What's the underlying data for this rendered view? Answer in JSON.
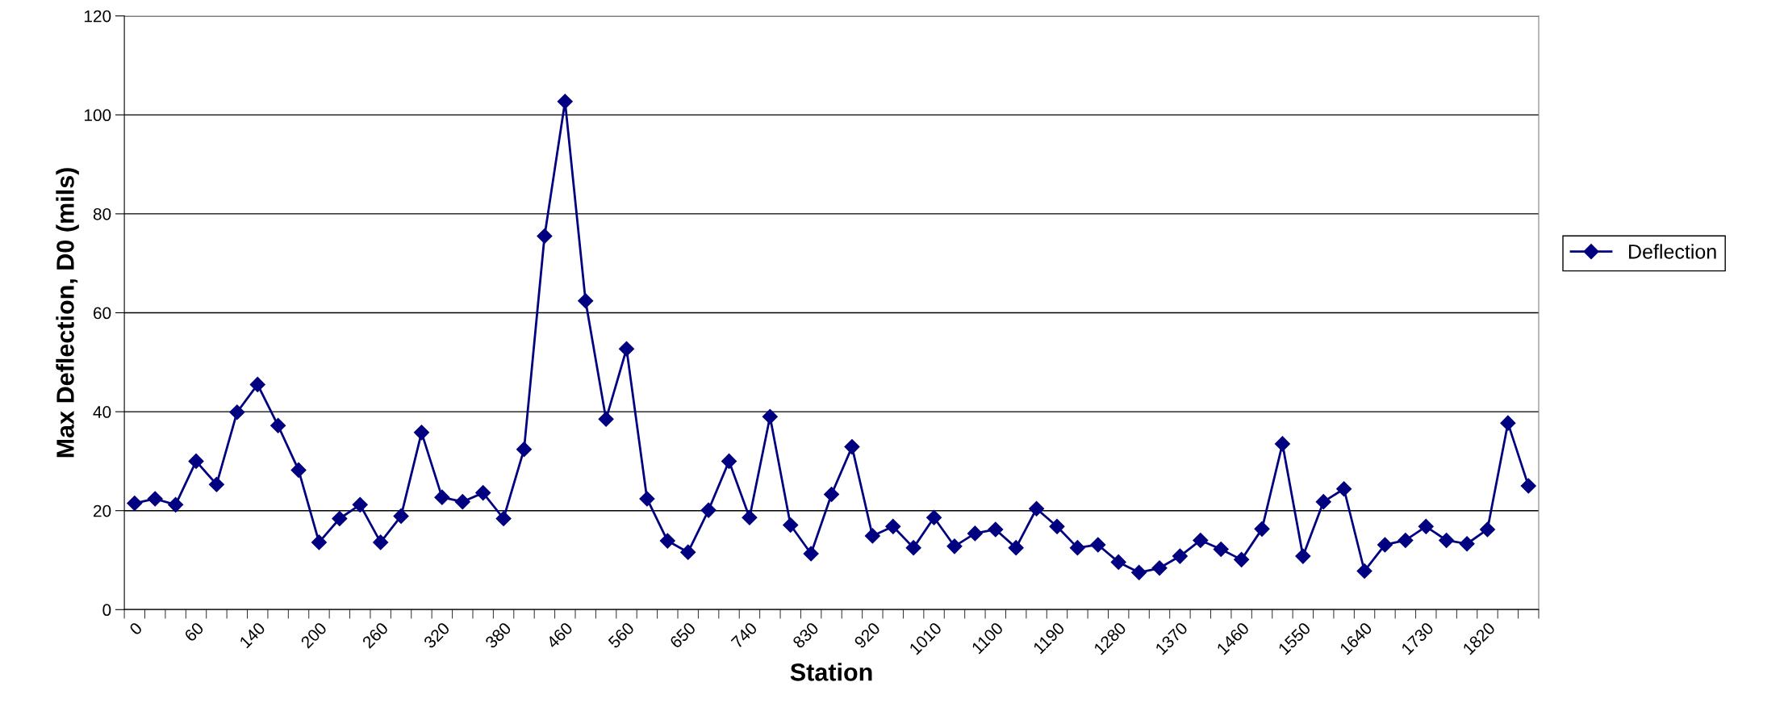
{
  "chart_data": {
    "type": "line",
    "xlabel": "Station",
    "ylabel": "Max Deflection, D0 (mils)",
    "categories": [
      "0",
      null,
      null,
      "60",
      null,
      null,
      "140",
      null,
      null,
      "200",
      null,
      null,
      "260",
      null,
      null,
      "320",
      null,
      null,
      "380",
      null,
      null,
      "460",
      null,
      null,
      "560",
      null,
      null,
      "650",
      null,
      null,
      "740",
      null,
      null,
      "830",
      null,
      null,
      "920",
      null,
      null,
      "1010",
      null,
      null,
      "1100",
      null,
      null,
      "1190",
      null,
      null,
      "1280",
      null,
      null,
      "1370",
      null,
      null,
      "1460",
      null,
      null,
      "1550",
      null,
      null,
      "1640",
      null,
      null,
      "1730",
      null,
      null,
      "1820",
      null,
      null
    ],
    "series": [
      {
        "name": "Deflection",
        "color": "#000080",
        "values": [
          21.5,
          22.4,
          21.2,
          30.0,
          25.3,
          39.9,
          45.5,
          37.2,
          28.2,
          13.6,
          18.4,
          21.2,
          13.6,
          18.9,
          35.8,
          22.7,
          21.8,
          23.6,
          18.4,
          32.4,
          75.5,
          102.7,
          62.4,
          38.5,
          52.7,
          22.4,
          13.9,
          11.6,
          20.1,
          30.0,
          18.6,
          39.0,
          17.1,
          11.3,
          23.3,
          32.9,
          14.9,
          16.8,
          12.5,
          18.6,
          12.8,
          15.4,
          16.2,
          12.5,
          20.4,
          16.8,
          12.5,
          13.1,
          9.6,
          7.5,
          8.4,
          10.8,
          14.0,
          12.2,
          10.1,
          16.3,
          33.5,
          10.8,
          21.8,
          24.4,
          7.8,
          13.1,
          14.0,
          16.8,
          14.0,
          13.3,
          16.2,
          37.7,
          25.0
        ]
      }
    ],
    "ylim": [
      0,
      120
    ],
    "yticks": [
      0,
      20,
      40,
      60,
      80,
      100,
      120
    ],
    "grid": "y",
    "legend": "right",
    "marker": "diamond",
    "line_style": "solid"
  }
}
